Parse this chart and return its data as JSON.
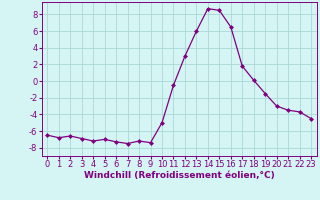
{
  "x": [
    0,
    1,
    2,
    3,
    4,
    5,
    6,
    7,
    8,
    9,
    10,
    11,
    12,
    13,
    14,
    15,
    16,
    17,
    18,
    19,
    20,
    21,
    22,
    23
  ],
  "y": [
    -6.5,
    -6.8,
    -6.6,
    -6.9,
    -7.2,
    -7.0,
    -7.3,
    -7.5,
    -7.2,
    -7.4,
    -5.0,
    -0.5,
    3.0,
    6.0,
    8.7,
    8.5,
    6.5,
    1.8,
    0.1,
    -1.5,
    -3.0,
    -3.5,
    -3.7,
    -4.5
  ],
  "line_color": "#800080",
  "marker": "D",
  "marker_size": 2.0,
  "bg_color": "#d5f5f5",
  "grid_color": "#aad8d8",
  "xlabel": "Windchill (Refroidissement éolien,°C)",
  "ylim": [
    -9,
    9.5
  ],
  "xlim": [
    -0.5,
    23.5
  ],
  "yticks": [
    -8,
    -6,
    -4,
    -2,
    0,
    2,
    4,
    6,
    8
  ],
  "xticks": [
    0,
    1,
    2,
    3,
    4,
    5,
    6,
    7,
    8,
    9,
    10,
    11,
    12,
    13,
    14,
    15,
    16,
    17,
    18,
    19,
    20,
    21,
    22,
    23
  ],
  "tick_color": "#800080",
  "label_color": "#800080",
  "axis_color": "#800080",
  "xlabel_fontsize": 6.5,
  "tick_fontsize": 6.0,
  "linewidth": 0.9
}
